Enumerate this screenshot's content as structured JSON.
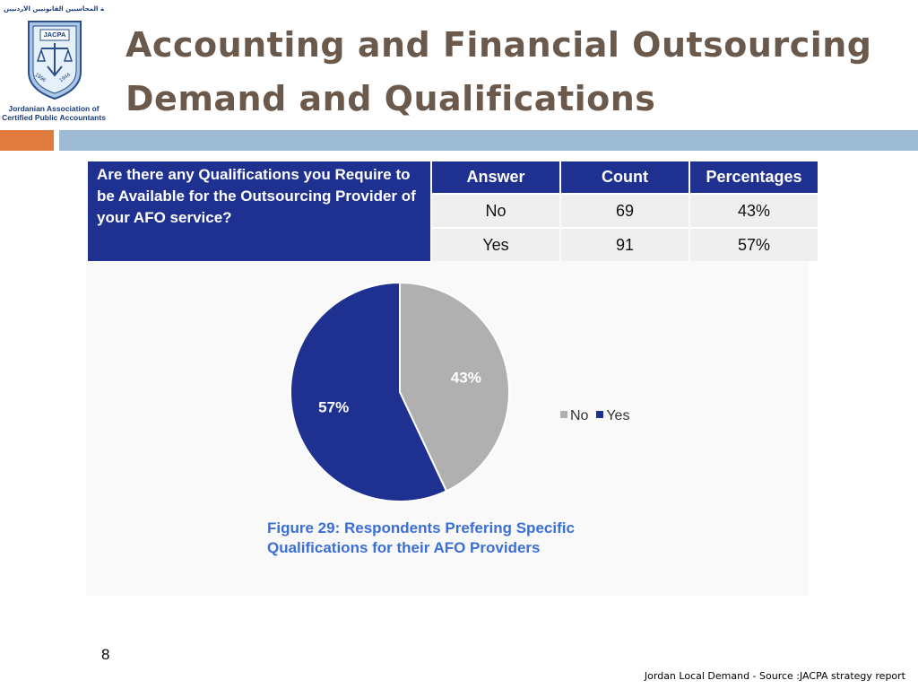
{
  "logo": {
    "arabic": "جمعية المحاسبين القانونيين الأردنيين",
    "acronym": "JACPA",
    "year_left": "1996",
    "year_right": "1944",
    "english": "Jordanian Association of Certified Public Accountants"
  },
  "title": {
    "line1": "Accounting and Financial Outsourcing",
    "line2": "Demand and Qualifications"
  },
  "table": {
    "question": "Are there any Qualifications you Require to be Available for the Outsourcing Provider of your AFO service?",
    "headers": [
      "Answer",
      "Count",
      "Percentages"
    ],
    "rows": [
      {
        "answer": "No",
        "count": "69",
        "percent": "43%"
      },
      {
        "answer": "Yes",
        "count": "91",
        "percent": "57%"
      }
    ]
  },
  "chart_data": {
    "type": "pie",
    "categories": [
      "No",
      "Yes"
    ],
    "values": [
      43,
      57
    ],
    "labels": [
      "43%",
      "57%"
    ],
    "colors": [
      "#b0b0b0",
      "#1f3190"
    ],
    "legend": "right"
  },
  "legend": {
    "no": "No",
    "yes": "Yes"
  },
  "caption": "Figure 29: Respondents Prefering Specific Qualifications for their AFO Providers",
  "slide_number": "8",
  "footer": "Jordan Local Demand - Source :JACPA strategy report"
}
